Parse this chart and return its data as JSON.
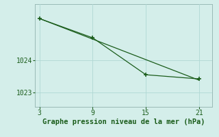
{
  "line1_x": [
    3,
    21
  ],
  "line1_y": [
    1025.3,
    1023.38
  ],
  "line2_x": [
    3,
    9,
    15,
    21
  ],
  "line2_y": [
    1025.3,
    1024.7,
    1023.55,
    1023.42
  ],
  "line_color": "#1a5c1a",
  "bg_color": "#d4eeea",
  "grid_color": "#b0d8d4",
  "xlabel": "Graphe pression niveau de la mer (hPa)",
  "xticks": [
    3,
    9,
    15,
    21
  ],
  "yticks": [
    1023,
    1024
  ],
  "ylim": [
    1022.55,
    1025.75
  ],
  "xlim": [
    2.5,
    22.5
  ],
  "marker": "+",
  "markersize": 5,
  "linewidth": 0.9,
  "xlabel_fontsize": 7.5,
  "tick_fontsize": 7,
  "xlabel_color": "#1a5c1a",
  "tick_color": "#1a5c1a",
  "axis_color": "#9abab6",
  "grid_linewidth": 0.6
}
